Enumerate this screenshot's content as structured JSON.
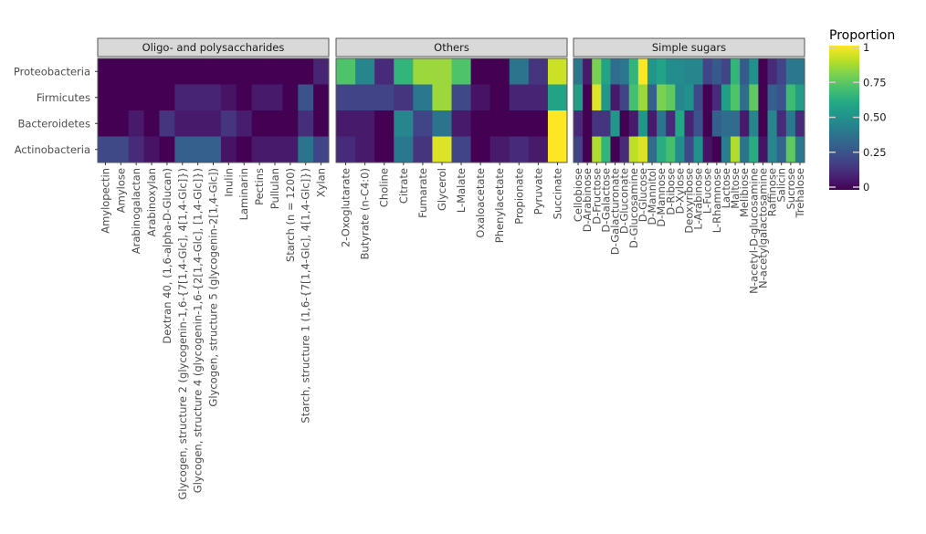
{
  "chart_data": {
    "type": "heatmap",
    "title": "",
    "xlabel": "",
    "ylabel": "",
    "rows": [
      "Proteobacteria",
      "Firmicutes",
      "Bacteroidetes",
      "Actinobacteria"
    ],
    "legend": {
      "title": "Proportion",
      "placement": "right",
      "range": [
        0,
        1
      ],
      "ticks": [
        0,
        0.25,
        0.5,
        0.75,
        1
      ],
      "tick_labels": [
        "0",
        "0.25",
        "0.50",
        "0.75",
        "1"
      ],
      "colormap": "viridis"
    },
    "panels": [
      {
        "title": "Oligo- and polysaccharides",
        "columns": [
          "Amylopectin",
          "Amylose",
          "Arabinogalactan",
          "Arabinoxylan",
          "Dextran 40, (1,6-alpha-D-Glucan)",
          "Glycogen, structure 2 (glycogenin-1,6-{7[1,4-Glc], 4[1,4-Glc]})",
          "Glycogen, structure 4 (glycogenin-1,6-{2[1,4-Glc], [1,4-Glc]})",
          "Glycogen, structure 5 (glycogenin-2[1,4-Glc])",
          "Inulin",
          "Laminarin",
          "Pectins",
          "Pullulan",
          "Starch (n = 1200)",
          "Starch, structure 1 (1,6-{7[1,4-Glc], 4[1,4-Glc]})",
          "Xylan"
        ],
        "values": [
          [
            0,
            0,
            0,
            0,
            0,
            0,
            0,
            0,
            0,
            0,
            0,
            0,
            0,
            0,
            0.1
          ],
          [
            0,
            0,
            0,
            0,
            0,
            0.1,
            0.1,
            0.1,
            0.05,
            0,
            0.07,
            0.07,
            0,
            0.25,
            0
          ],
          [
            0,
            0,
            0.07,
            0,
            0.15,
            0.07,
            0.07,
            0.07,
            0.15,
            0.08,
            0,
            0,
            0,
            0.13,
            0
          ],
          [
            0.22,
            0.22,
            0.12,
            0.05,
            0,
            0.3,
            0.3,
            0.3,
            0.05,
            0,
            0.07,
            0.07,
            0.07,
            0.38,
            0.2
          ]
        ]
      },
      {
        "title": "Others",
        "columns": [
          "2-Oxoglutarate",
          "Butyrate (n-C4:0)",
          "Choline",
          "Citrate",
          "Fumarate",
          "Glycerol",
          "L-Malate",
          "Oxaloacetate",
          "Phenylacetate",
          "Propionate",
          "Pyruvate",
          "Succinate"
        ],
        "values": [
          [
            0.72,
            0.45,
            0.12,
            0.65,
            0.85,
            0.85,
            0.72,
            0,
            0,
            0.38,
            0.15,
            0.92
          ],
          [
            0.2,
            0.2,
            0.2,
            0.15,
            0.4,
            0.85,
            0.22,
            0.05,
            0,
            0.1,
            0.1,
            0.58
          ],
          [
            0.07,
            0.07,
            0,
            0.45,
            0.2,
            0.38,
            0.07,
            0,
            0,
            0,
            0,
            1
          ],
          [
            0.12,
            0.07,
            0,
            0.4,
            0.15,
            0.95,
            0.2,
            0,
            0.07,
            0.12,
            0.07,
            1
          ]
        ]
      },
      {
        "title": "Simple sugars",
        "columns": [
          "Cellobiose",
          "D-Arabinose",
          "D-Fructose",
          "D-Galactose",
          "D-Galacturonate",
          "D-Gluconate",
          "D-Glucosamine",
          "D-Glucose",
          "D-Mannitol",
          "D-Mannose",
          "D-Ribose",
          "D-Xylose",
          "Deoxyribose",
          "L-Arabinose",
          "L-Fucose",
          "L-Rhamnose",
          "Lactose",
          "Maltose",
          "Melibiose",
          "N-acetyl-D-glucosamine",
          "N-acetylgalactosamine",
          "Raffinose",
          "Salicin",
          "Sucrose",
          "Trehalose"
        ],
        "values": [
          [
            0.4,
            0.07,
            0.8,
            0.58,
            0.35,
            0.4,
            0.65,
            1,
            0.52,
            0.58,
            0.48,
            0.48,
            0.45,
            0.45,
            0.2,
            0.28,
            0.2,
            0.65,
            0.28,
            0.5,
            0,
            0.12,
            0.2,
            0.4,
            0.4
          ],
          [
            0.55,
            0,
            0.95,
            0.52,
            0.07,
            0.2,
            0.7,
            0.85,
            0.3,
            0.8,
            0.75,
            0.45,
            0.5,
            0.22,
            0,
            0.12,
            0.55,
            0.72,
            0.35,
            0.75,
            0,
            0.3,
            0.25,
            0.68,
            0.55
          ],
          [
            0.12,
            0,
            0.15,
            0.15,
            0.52,
            0,
            0.07,
            0.52,
            0.07,
            0.38,
            0.12,
            0.6,
            0.1,
            0.25,
            0,
            0.3,
            0.35,
            0.35,
            0.07,
            0.45,
            0,
            0.45,
            0.12,
            0.4,
            0.12
          ],
          [
            0.2,
            0,
            0.88,
            0.65,
            0,
            0.12,
            0.9,
            0.95,
            0.35,
            0.62,
            0.7,
            0.48,
            0.22,
            0.5,
            0.05,
            0,
            0.42,
            0.88,
            0.38,
            0.62,
            0.05,
            0.45,
            0.32,
            0.75,
            0.4
          ]
        ]
      }
    ]
  }
}
